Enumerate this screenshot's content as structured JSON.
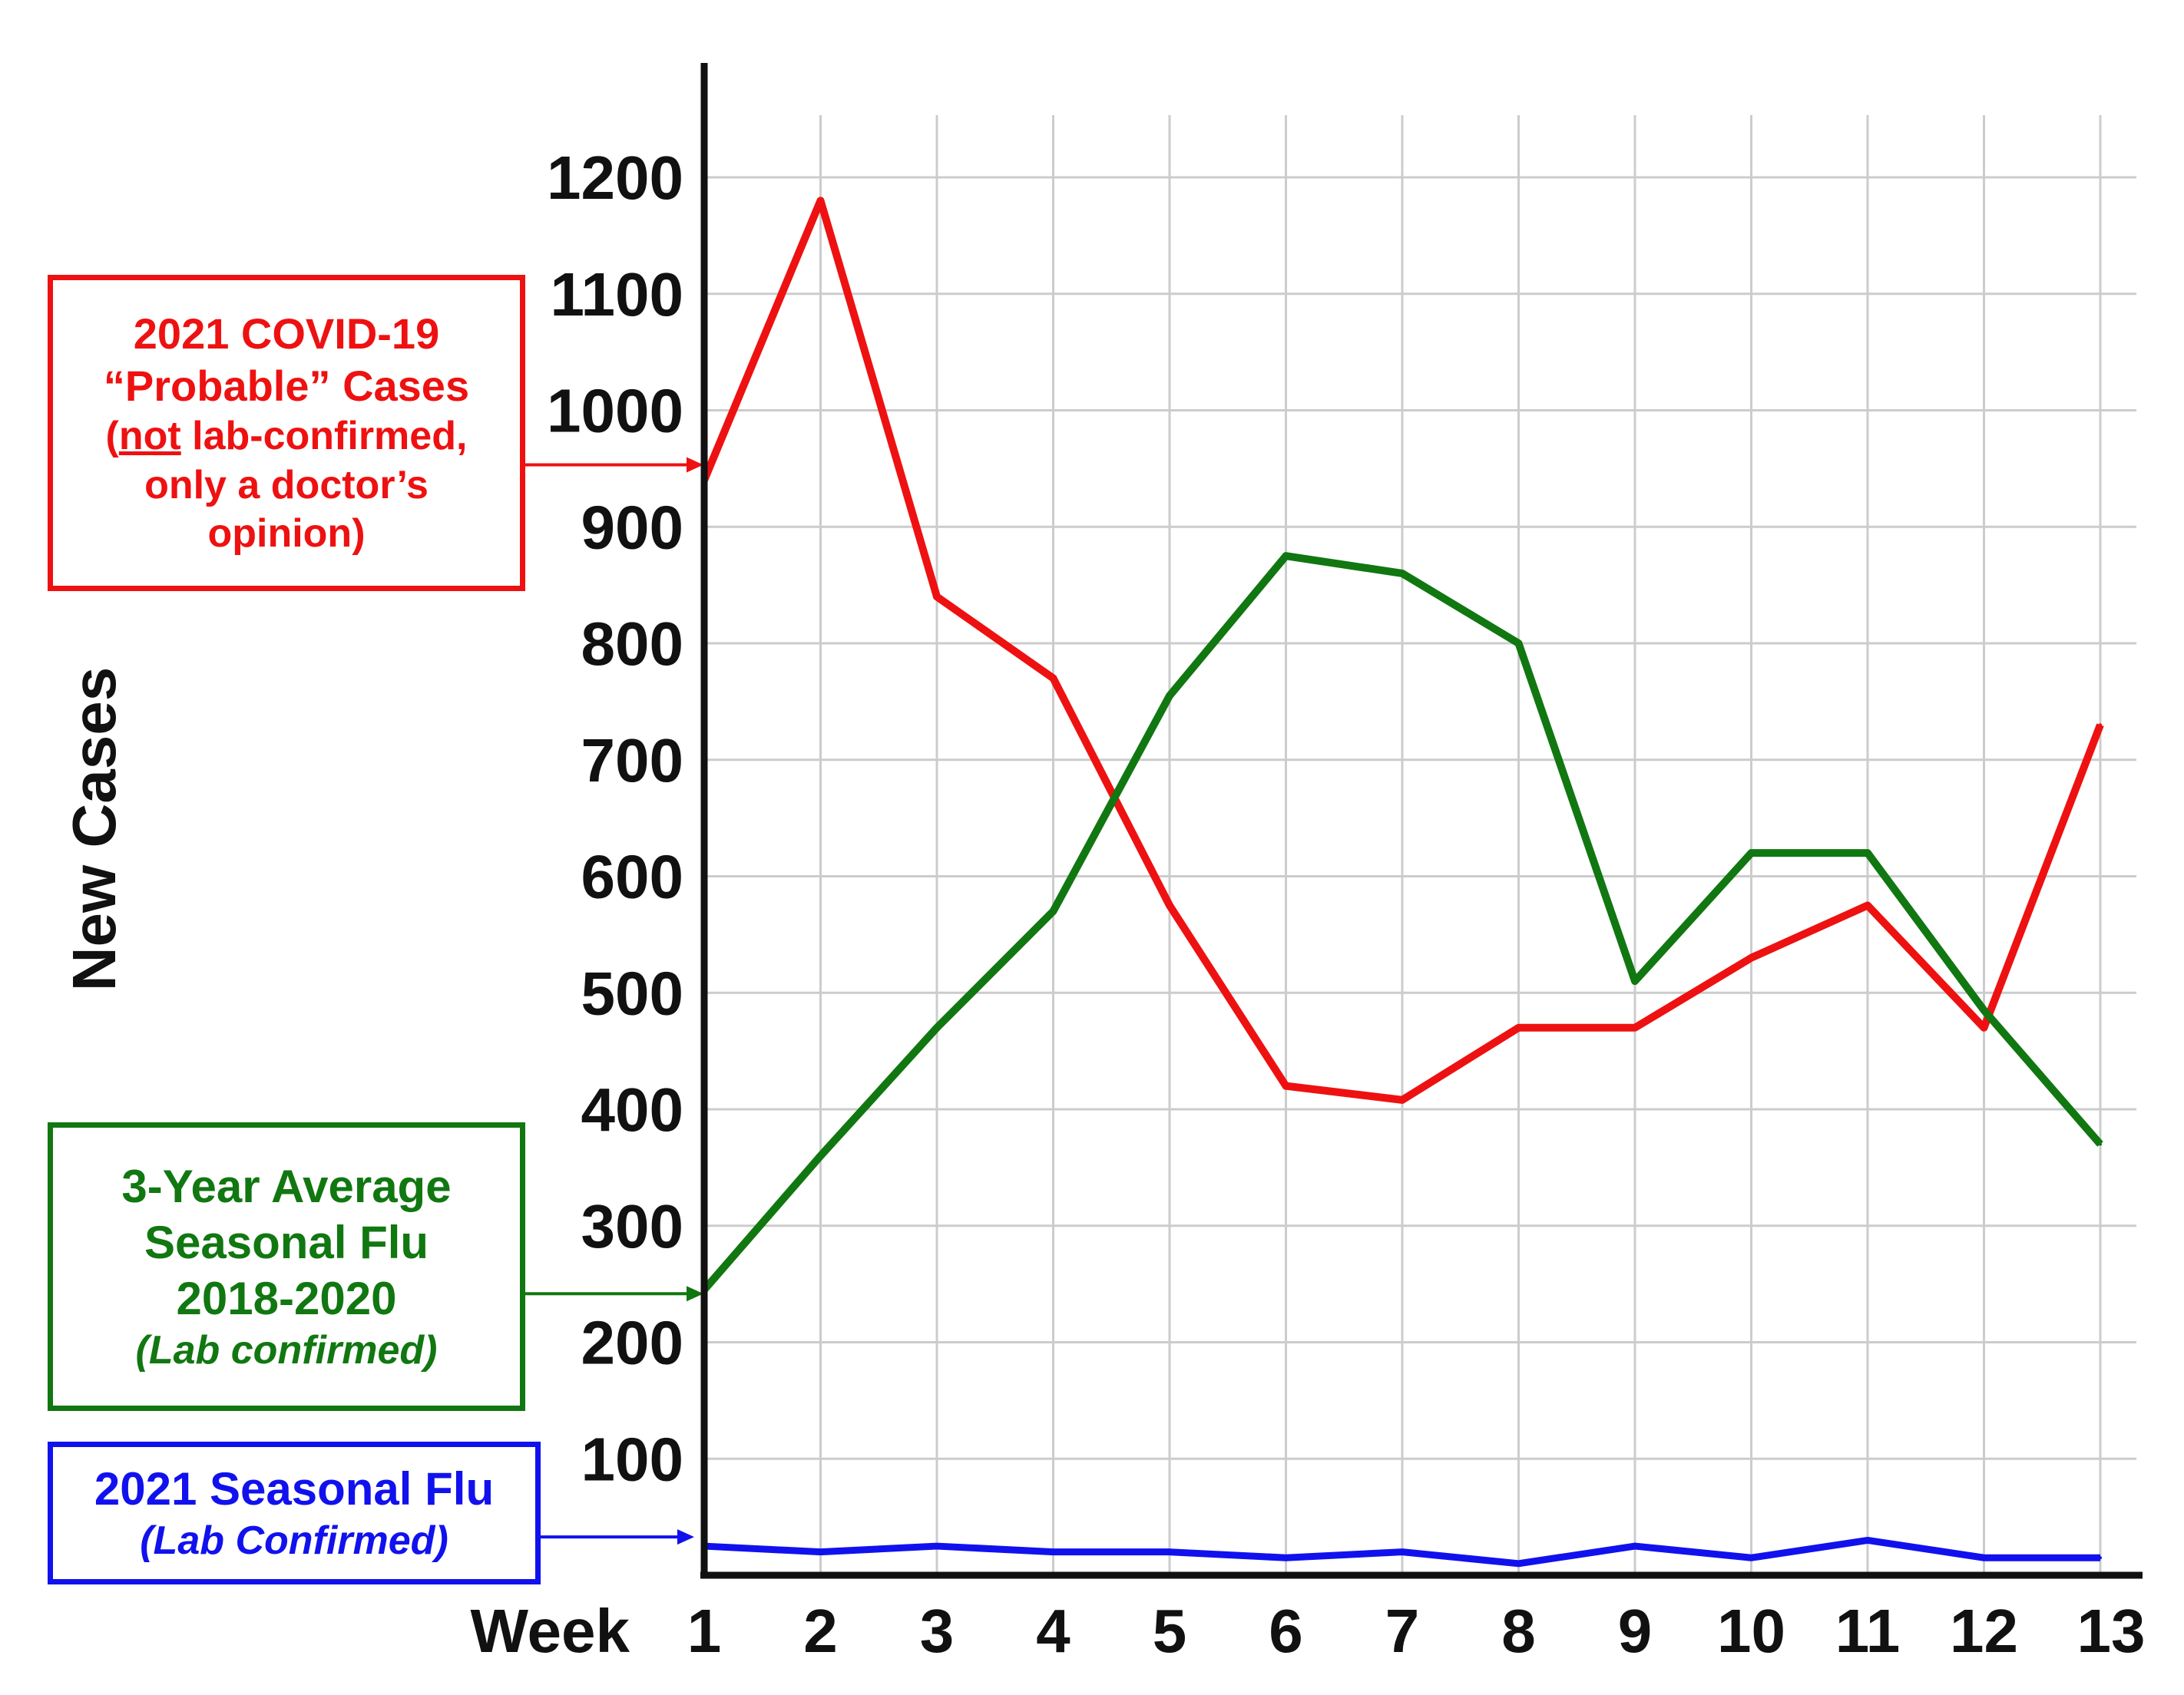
{
  "chart_data": {
    "type": "line",
    "ylabel": "New Cases",
    "xlabel": "Week",
    "x": [
      1,
      2,
      3,
      4,
      5,
      6,
      7,
      8,
      9,
      10,
      11,
      12,
      13
    ],
    "ylim": [
      0,
      1300
    ],
    "yticks": [
      100,
      200,
      300,
      400,
      500,
      600,
      700,
      800,
      900,
      1000,
      1100,
      1200
    ],
    "grid": true,
    "series": [
      {
        "color": "#ee1111",
        "values": [
          940,
          1180,
          840,
          770,
          575,
          420,
          408,
          470,
          470,
          530,
          575,
          470,
          730
        ]
      },
      {
        "color": "#117711",
        "values": [
          245,
          360,
          470,
          570,
          755,
          875,
          860,
          800,
          510,
          620,
          620,
          485,
          370
        ]
      },
      {
        "color": "#1111ee",
        "values": [
          25,
          20,
          25,
          20,
          20,
          15,
          20,
          10,
          25,
          15,
          30,
          15,
          15
        ]
      }
    ]
  },
  "legends": {
    "covid": {
      "color": "#ee1111",
      "line1": "2021 COVID-19",
      "line2": "“Probable” Cases",
      "line3_open": "(",
      "line3_not": "not",
      "line3_rest": " lab-confirmed,",
      "line4": "only a doctor’s",
      "line5": "opinion)"
    },
    "avgflu": {
      "color": "#117711",
      "line1": "3-Year Average",
      "line2": "Seasonal Flu",
      "line3": "2018-2020",
      "line4": "(Lab confirmed)"
    },
    "flu2021": {
      "color": "#1111ee",
      "line1": "2021 Seasonal Flu",
      "line2": "(Lab Confirmed)"
    }
  }
}
